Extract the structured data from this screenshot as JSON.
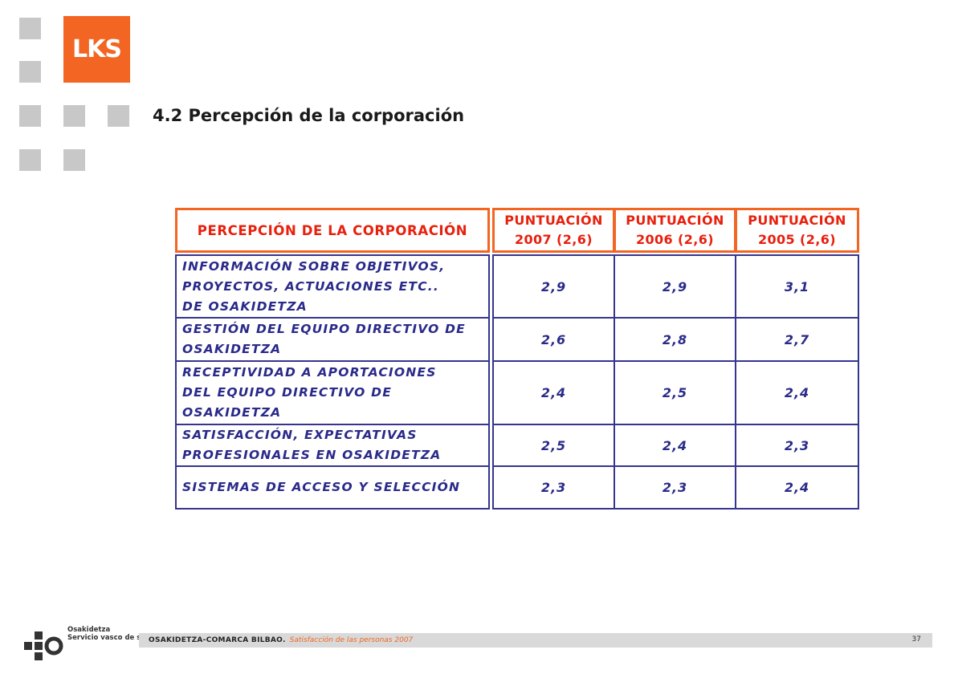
{
  "brand": {
    "logo_text": "LKS",
    "accent": "#f26522",
    "text_color": "#2a2a8a"
  },
  "page_title": "4.2 Percepción de la corporación",
  "table": {
    "header": {
      "label": "PERCEPCIÓN DE LA CORPORACIÓN",
      "columns": [
        {
          "line1": "PUNTUACIÓN",
          "line2": "2007 (2,6)"
        },
        {
          "line1": "PUNTUACIÓN",
          "line2": "2006 (2,6)"
        },
        {
          "line1": "PUNTUACIÓN",
          "line2": "2005 (2,6)"
        }
      ]
    },
    "rows": [
      {
        "label": "INFORMACIÓN SOBRE OBJETIVOS,\nPROYECTOS, ACTUACIONES ETC..\nDE OSAKIDETZA",
        "values": [
          "2,9",
          "2,9",
          "3,1"
        ]
      },
      {
        "label": "GESTIÓN DEL EQUIPO DIRECTIVO DE\nOSAKIDETZA",
        "values": [
          "2,6",
          "2,8",
          "2,7"
        ]
      },
      {
        "label": "RECEPTIVIDAD A APORTACIONES\nDEL EQUIPO DIRECTIVO DE\nOSAKIDETZA",
        "values": [
          "2,4",
          "2,5",
          "2,4"
        ]
      },
      {
        "label": "SATISFACCIÓN, EXPECTATIVAS\nPROFESIONALES EN OSAKIDETZA",
        "values": [
          "2,5",
          "2,4",
          "2,3"
        ]
      },
      {
        "label": "SISTEMAS DE ACCESO Y SELECCIÓN",
        "values": [
          "2,3",
          "2,3",
          "2,4"
        ]
      }
    ]
  },
  "footer": {
    "org_logo_line1": "Osakidetza",
    "org_logo_line2": "Servicio vasco de salud",
    "organization": "OSAKIDETZA-COMARCA BILBAO.",
    "subtitle": "Satisfacción de las personas 2007",
    "page_number": "37"
  }
}
